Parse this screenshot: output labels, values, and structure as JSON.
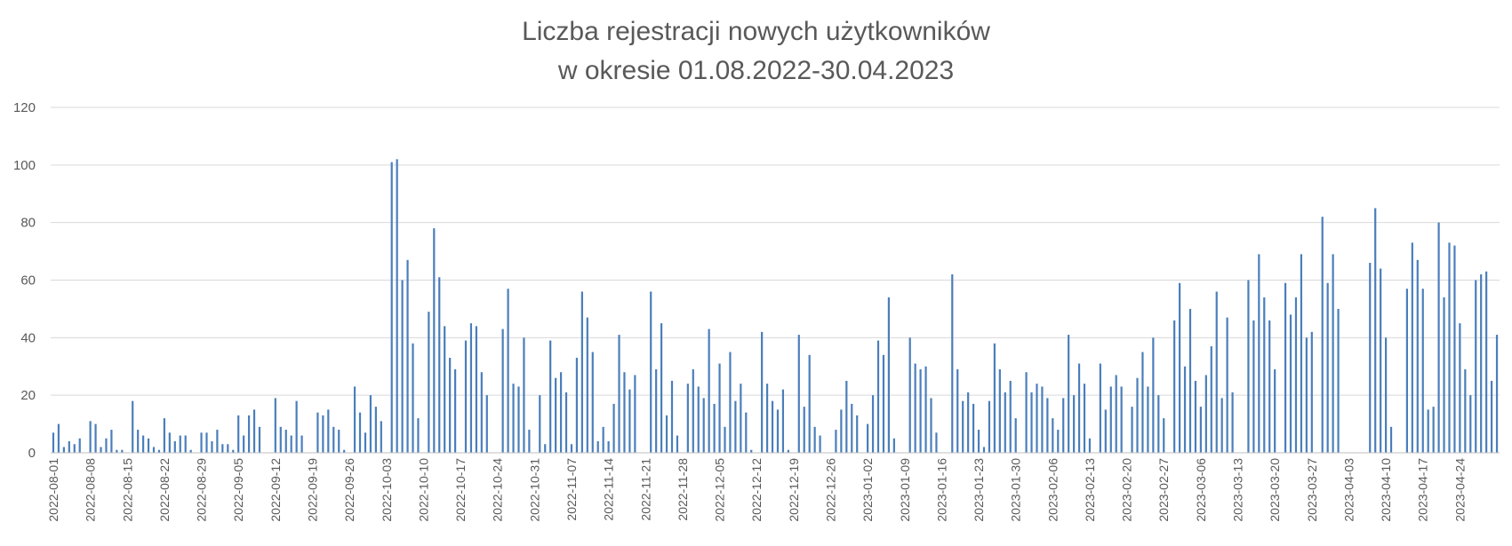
{
  "chart_data": {
    "type": "bar",
    "title": [
      "Liczba rejestracji nowych użytkowników",
      "w okresie 01.08.2022-30.04.2023"
    ],
    "xlabel": "",
    "ylabel": "",
    "ylim": [
      0,
      120
    ],
    "yticks": [
      0,
      20,
      40,
      60,
      80,
      100,
      120
    ],
    "grid": true,
    "legend": "none",
    "bar_color": "#4a7ebb",
    "start_date": "2022-08-01",
    "x_tick_labels": [
      "2022-08-01",
      "2022-08-08",
      "2022-08-15",
      "2022-08-22",
      "2022-08-29",
      "2022-09-05",
      "2022-09-12",
      "2022-09-19",
      "2022-09-26",
      "2022-10-03",
      "2022-10-10",
      "2022-10-17",
      "2022-10-24",
      "2022-10-31",
      "2022-11-07",
      "2022-11-14",
      "2022-11-21",
      "2022-11-28",
      "2022-12-05",
      "2022-12-12",
      "2022-12-19",
      "2022-12-26",
      "2023-01-02",
      "2023-01-09",
      "2023-01-16",
      "2023-01-23",
      "2023-01-30",
      "2023-02-06",
      "2023-02-13",
      "2023-02-20",
      "2023-02-27",
      "2023-03-06",
      "2023-03-13",
      "2023-03-20",
      "2023-03-27",
      "2023-04-03",
      "2023-04-10",
      "2023-04-17",
      "2023-04-24"
    ],
    "values": [
      7,
      10,
      2,
      4,
      3,
      5,
      0,
      11,
      10,
      2,
      5,
      8,
      1,
      1,
      0,
      18,
      8,
      6,
      5,
      2,
      1,
      12,
      7,
      4,
      6,
      6,
      1,
      0,
      7,
      7,
      4,
      8,
      3,
      3,
      1,
      13,
      6,
      13,
      15,
      9,
      0,
      0,
      19,
      9,
      8,
      6,
      18,
      6,
      0,
      0,
      14,
      13,
      15,
      9,
      8,
      1,
      0,
      23,
      14,
      7,
      20,
      16,
      11,
      0,
      101,
      102,
      60,
      67,
      38,
      12,
      0,
      49,
      78,
      61,
      44,
      33,
      29,
      0,
      39,
      45,
      44,
      28,
      20,
      0,
      0,
      43,
      57,
      24,
      23,
      40,
      8,
      0,
      20,
      3,
      39,
      26,
      28,
      21,
      3,
      33,
      56,
      47,
      35,
      4,
      9,
      4,
      17,
      41,
      28,
      22,
      27,
      0,
      0,
      56,
      29,
      45,
      13,
      25,
      6,
      0,
      24,
      29,
      23,
      19,
      43,
      17,
      31,
      9,
      35,
      18,
      24,
      14,
      1,
      0,
      42,
      24,
      18,
      15,
      22,
      1,
      0,
      41,
      16,
      34,
      9,
      6,
      0,
      0,
      8,
      15,
      25,
      17,
      13,
      0,
      10,
      20,
      39,
      34,
      54,
      5,
      0,
      0,
      40,
      31,
      29,
      30,
      19,
      7,
      0,
      0,
      62,
      29,
      18,
      21,
      17,
      8,
      2,
      18,
      38,
      29,
      21,
      25,
      12,
      0,
      28,
      21,
      24,
      23,
      19,
      12,
      8,
      19,
      41,
      20,
      31,
      24,
      5,
      0,
      31,
      15,
      23,
      27,
      23,
      0,
      16,
      26,
      35,
      23,
      40,
      20,
      12,
      0,
      46,
      59,
      30,
      50,
      25,
      16,
      27,
      37,
      56,
      19,
      47,
      21,
      0,
      0,
      60,
      46,
      69,
      54,
      46,
      29,
      0,
      59,
      48,
      54,
      69,
      40,
      42,
      0,
      82,
      59,
      69,
      50,
      0,
      0,
      0,
      0,
      0,
      66,
      85,
      64,
      40,
      9,
      0,
      0,
      57,
      73,
      67,
      57,
      15,
      16,
      80,
      54,
      73,
      72,
      45,
      29,
      20,
      60,
      62,
      63,
      25,
      41
    ]
  }
}
